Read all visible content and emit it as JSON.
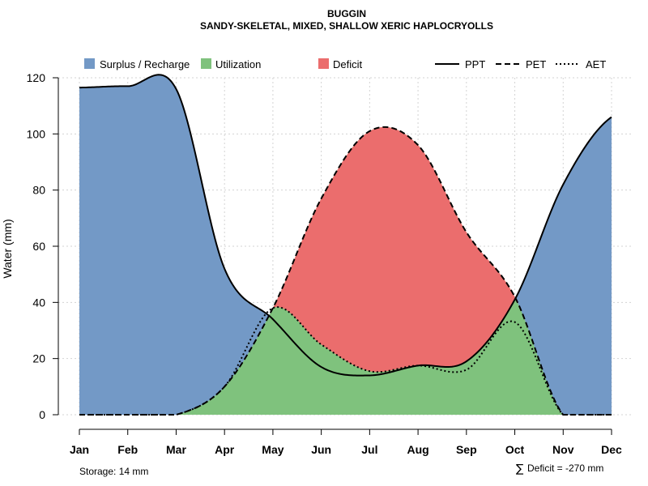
{
  "chart_data": {
    "type": "area",
    "title": "BUGGIN",
    "subtitle": "SANDY-SKELETAL, MIXED, SHALLOW XERIC HAPLOCRYOLLS",
    "ylabel": "Water (mm)",
    "xlabel": "",
    "ylim": [
      0,
      120
    ],
    "yticks": [
      "0",
      "20",
      "40",
      "60",
      "80",
      "100",
      "120"
    ],
    "categories": [
      "Jan",
      "Feb",
      "Mar",
      "Apr",
      "May",
      "Jun",
      "Jul",
      "Aug",
      "Sep",
      "Oct",
      "Nov",
      "Dec"
    ],
    "grid": true,
    "series": [
      {
        "name": "PPT",
        "line": "solid",
        "values": [
          116.5,
          117,
          116,
          52,
          34,
          17,
          14,
          17.5,
          19,
          41,
          82,
          106
        ]
      },
      {
        "name": "PET",
        "line": "dashed",
        "values": [
          0,
          0,
          0,
          10,
          38,
          77,
          101,
          96,
          65,
          42,
          0,
          0
        ]
      },
      {
        "name": "AET",
        "line": "dotted",
        "values": [
          0,
          0,
          0,
          10,
          38,
          25,
          15.5,
          17.5,
          16,
          33,
          0,
          0
        ]
      }
    ],
    "areas": [
      {
        "name": "Surplus / Recharge",
        "color": "#7399C6"
      },
      {
        "name": "Utilization",
        "color": "#7FC27D"
      },
      {
        "name": "Deficit",
        "color": "#EB6D6D"
      }
    ],
    "legend_position": "top",
    "annotations": {
      "storage": "Storage: 14 mm",
      "deficit_symbol": "∑",
      "deficit": "Deficit = -270 mm"
    }
  }
}
